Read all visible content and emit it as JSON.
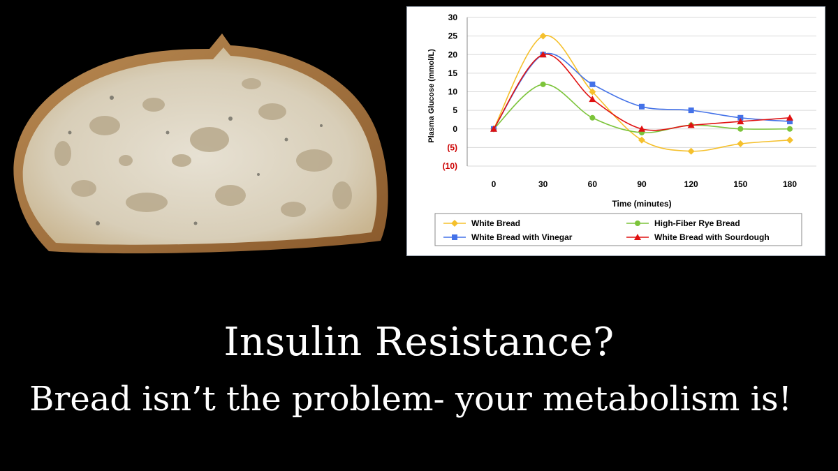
{
  "caption": {
    "headline": "Insulin Resistance?",
    "subline": "Bread isn’t the problem- your metabolism is!"
  },
  "chart_data": {
    "type": "line",
    "ylabel": "Plasma Glucose (mmol/L)",
    "xlabel": "Time (minutes)",
    "x": [
      0,
      30,
      60,
      90,
      120,
      150,
      180
    ],
    "ylim": [
      -10,
      30
    ],
    "y_ticks": [
      {
        "value": 30,
        "label": "30"
      },
      {
        "value": 25,
        "label": "25"
      },
      {
        "value": 20,
        "label": "20"
      },
      {
        "value": 15,
        "label": "15"
      },
      {
        "value": 10,
        "label": "10"
      },
      {
        "value": 5,
        "label": "5"
      },
      {
        "value": 0,
        "label": "0"
      },
      {
        "value": -5,
        "label": "(5)"
      },
      {
        "value": -10,
        "label": "(10)"
      }
    ],
    "negative_tick_color": "#cc0000",
    "grid": true,
    "legend_position": "bottom",
    "series": [
      {
        "name": "White Bread",
        "color": "#f5c02c",
        "marker": "diamond",
        "values": [
          0,
          25,
          10,
          -3,
          -6,
          -4,
          -3
        ]
      },
      {
        "name": "High-Fiber Rye Bread",
        "color": "#7cc43a",
        "marker": "circle",
        "values": [
          0,
          12,
          3,
          -1,
          1,
          0,
          0
        ]
      },
      {
        "name": "White Bread with Vinegar",
        "color": "#4472e8",
        "marker": "square",
        "values": [
          0,
          20,
          12,
          6,
          5,
          3,
          2
        ]
      },
      {
        "name": "White Bread with Sourdough",
        "color": "#e01010",
        "marker": "triangle",
        "values": [
          0,
          20,
          8,
          0,
          1,
          2,
          3
        ]
      }
    ]
  }
}
